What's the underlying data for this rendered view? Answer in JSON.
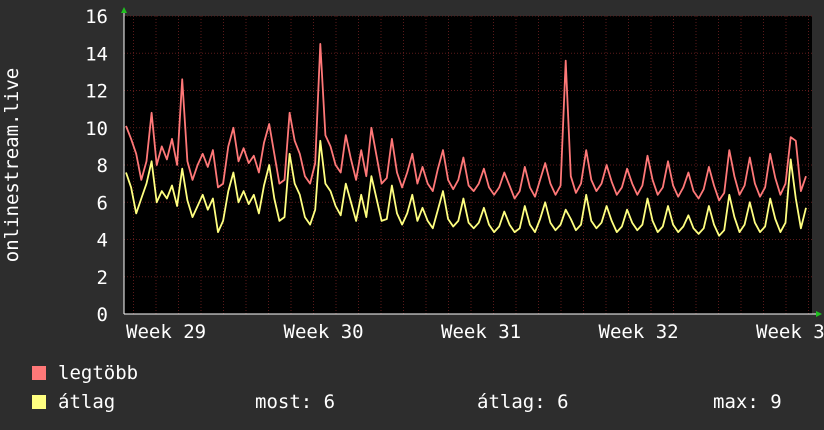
{
  "chart_data": {
    "type": "line",
    "ylabel": "onlinestream.live",
    "ylim": [
      0,
      16
    ],
    "yticks": [
      0,
      2,
      4,
      6,
      8,
      10,
      12,
      14,
      16
    ],
    "x_tick_labels": [
      "Week 29",
      "Week 30",
      "Week 31",
      "Week 32",
      "Week 3"
    ],
    "grid": true,
    "legend_placement": "bottom-left",
    "background_color": "#000000",
    "grid_color": "#5a1a1a",
    "series": [
      {
        "name": "legtöbb",
        "color": "#ff7878",
        "values": [
          10.1,
          9.4,
          8.6,
          7.2,
          8.2,
          10.8,
          8.0,
          9.0,
          8.3,
          9.4,
          8.0,
          12.6,
          8.2,
          7.2,
          8.0,
          8.6,
          7.9,
          8.8,
          6.8,
          7.0,
          9.0,
          10.0,
          8.2,
          8.9,
          8.1,
          8.5,
          7.6,
          9.2,
          10.2,
          8.6,
          7.0,
          7.2,
          10.8,
          9.3,
          8.6,
          7.4,
          7.0,
          8.1,
          14.5,
          9.6,
          9.0,
          8.0,
          7.6,
          9.6,
          8.3,
          7.2,
          8.8,
          7.4,
          10.0,
          8.5,
          7.0,
          7.3,
          9.4,
          7.6,
          6.8,
          7.6,
          8.6,
          7.0,
          7.9,
          7.0,
          6.6,
          7.8,
          8.8,
          7.2,
          6.7,
          7.2,
          8.4,
          6.9,
          6.6,
          7.0,
          7.8,
          6.8,
          6.4,
          6.8,
          7.6,
          6.9,
          6.2,
          6.6,
          7.9,
          6.8,
          6.3,
          7.2,
          8.1,
          7.0,
          6.4,
          6.9,
          13.6,
          7.4,
          6.5,
          7.0,
          8.8,
          7.2,
          6.6,
          7.0,
          8.0,
          7.1,
          6.4,
          6.8,
          7.8,
          7.0,
          6.4,
          6.9,
          8.5,
          7.2,
          6.4,
          6.8,
          8.2,
          6.9,
          6.3,
          6.8,
          7.6,
          6.6,
          6.2,
          6.7,
          7.9,
          6.9,
          6.1,
          6.5,
          8.8,
          7.4,
          6.4,
          6.9,
          8.4,
          7.0,
          6.3,
          6.8,
          8.6,
          7.3,
          6.4,
          7.0,
          9.5,
          9.3,
          6.6,
          7.4
        ]
      },
      {
        "name": "átlag",
        "color": "#ffff80",
        "values": [
          7.6,
          6.8,
          5.4,
          6.2,
          7.0,
          8.2,
          6.0,
          6.6,
          6.2,
          6.9,
          5.8,
          7.8,
          6.1,
          5.2,
          5.8,
          6.4,
          5.6,
          6.2,
          4.4,
          5.0,
          6.6,
          7.6,
          6.0,
          6.6,
          5.9,
          6.4,
          5.4,
          6.9,
          8.0,
          6.2,
          5.0,
          5.2,
          8.6,
          7.0,
          6.4,
          5.2,
          4.8,
          5.6,
          9.3,
          7.0,
          6.6,
          5.8,
          5.3,
          7.0,
          6.0,
          5.0,
          6.4,
          5.2,
          7.4,
          6.2,
          5.0,
          5.1,
          6.9,
          5.4,
          4.8,
          5.4,
          6.4,
          5.0,
          5.7,
          5.0,
          4.6,
          5.6,
          6.6,
          5.1,
          4.7,
          5.0,
          6.2,
          4.9,
          4.6,
          4.9,
          5.7,
          4.8,
          4.4,
          4.7,
          5.5,
          4.8,
          4.4,
          4.6,
          5.8,
          4.8,
          4.4,
          5.1,
          6.0,
          4.9,
          4.5,
          4.8,
          5.6,
          5.1,
          4.5,
          4.8,
          6.4,
          5.0,
          4.6,
          4.9,
          5.8,
          5.0,
          4.4,
          4.7,
          5.6,
          4.9,
          4.5,
          4.8,
          6.2,
          5.0,
          4.4,
          4.7,
          5.8,
          4.8,
          4.4,
          4.7,
          5.3,
          4.6,
          4.3,
          4.6,
          5.8,
          4.8,
          4.2,
          4.5,
          6.4,
          5.2,
          4.4,
          4.8,
          6.0,
          4.9,
          4.4,
          4.7,
          6.2,
          5.1,
          4.4,
          4.9,
          8.3,
          6.2,
          4.6,
          5.7
        ]
      }
    ]
  },
  "legend": [
    {
      "label": "legtöbb",
      "color": "#ff7878"
    },
    {
      "label": "átlag",
      "color": "#ffff80"
    }
  ],
  "stats": {
    "most": "most: 6",
    "atlag": "átlag: 6",
    "max": "max: 9"
  }
}
